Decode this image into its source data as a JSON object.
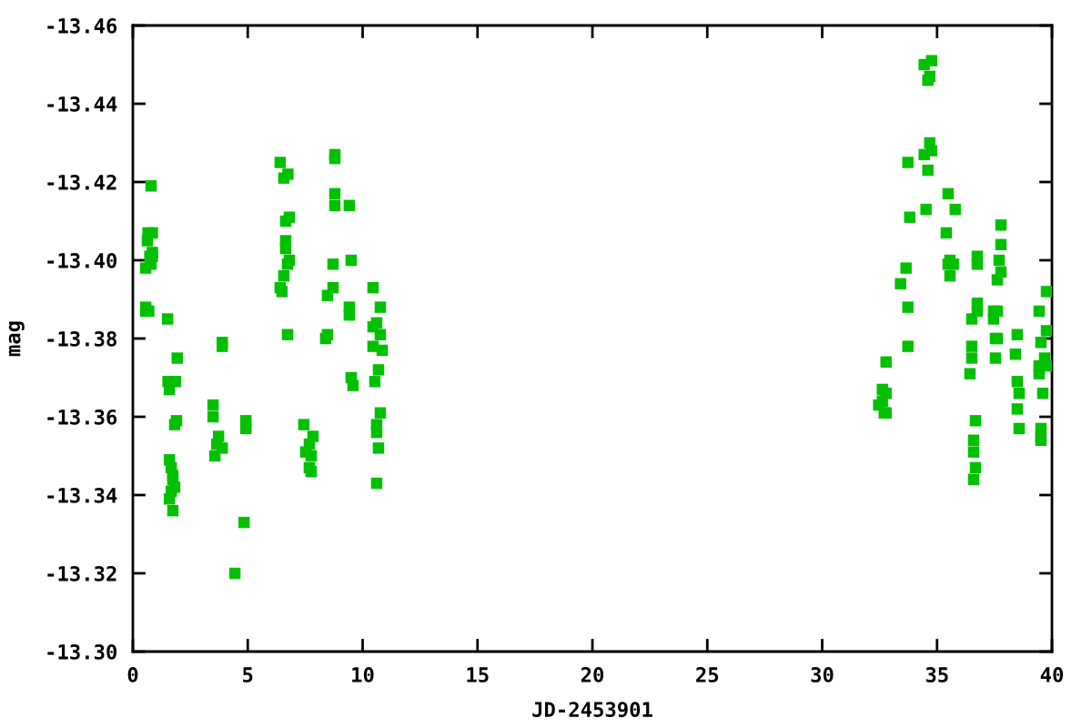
{
  "chart_data": {
    "type": "scatter",
    "xlabel": "JD-2453901",
    "ylabel": "mag",
    "xlim": [
      0,
      40
    ],
    "ylim": [
      -13.3,
      -13.46
    ],
    "xticks": [
      0,
      5,
      10,
      15,
      20,
      25,
      30,
      35,
      40
    ],
    "yticks": [
      {
        "value": -13.3,
        "label": "-13.30"
      },
      -13.32,
      -13.34,
      -13.36,
      -13.38,
      {
        "value": -13.4,
        "label": "-13.40"
      },
      -13.42,
      -13.44,
      -13.46
    ],
    "grid": false,
    "marker": "square",
    "series": [
      {
        "color": "#00c000",
        "x": [
          0.79,
          0.66,
          0.85,
          0.63,
          0.85,
          0.74,
          0.85,
          0.79,
          0.56,
          0.56,
          0.69,
          0.56,
          1.51,
          1.93,
          1.53,
          1.85,
          1.59,
          1.9,
          1.82,
          1.59,
          1.67,
          1.74,
          1.74,
          1.82,
          1.67,
          1.59,
          1.74,
          3.89,
          3.89,
          3.49,
          3.49,
          3.73,
          3.65,
          3.89,
          3.57,
          4.92,
          4.92,
          4.84,
          4.44,
          6.41,
          6.75,
          6.57,
          6.65,
          6.81,
          6.65,
          6.65,
          6.81,
          6.73,
          6.57,
          6.41,
          6.49,
          6.73,
          7.44,
          7.84,
          7.68,
          7.52,
          7.76,
          7.68,
          7.76,
          8.79,
          8.79,
          8.79,
          8.79,
          9.42,
          8.71,
          9.5,
          8.71,
          8.47,
          10.45,
          9.42,
          9.42,
          10.77,
          10.61,
          10.45,
          10.77,
          10.45,
          10.85,
          8.47,
          8.39,
          10.69,
          10.53,
          9.5,
          9.58,
          10.77,
          10.61,
          10.61,
          10.69,
          10.61,
          34.44,
          34.76,
          34.68,
          34.6,
          34.68,
          34.76,
          34.44,
          33.73,
          34.6,
          35.48,
          35.79,
          34.52,
          33.81,
          35.4,
          37.78,
          37.78,
          36.75,
          35.56,
          36.75,
          35.48,
          35.71,
          37.7,
          37.78,
          35.56,
          33.65,
          33.41,
          37.62,
          39.76,
          36.75,
          36.75,
          36.51,
          37.46,
          37.62,
          37.46,
          39.44,
          33.73,
          39.76,
          38.49,
          39.52,
          37.54,
          37.62,
          38.41,
          36.51,
          33.73,
          36.51,
          37.54,
          39.68,
          39.76,
          39.44,
          39.44,
          36.43,
          32.78,
          38.49,
          32.62,
          32.78,
          32.46,
          32.62,
          32.78,
          32.7,
          39.6,
          38.57,
          38.49,
          38.57,
          39.52,
          39.52,
          39.52,
          36.67,
          36.59,
          36.59,
          36.67,
          36.59
        ],
        "values": [
          -13.419,
          -13.407,
          -13.407,
          -13.405,
          -13.402,
          -13.401,
          -13.401,
          -13.399,
          -13.398,
          -13.388,
          -13.387,
          -13.387,
          -13.385,
          -13.375,
          -13.369,
          -13.369,
          -13.367,
          -13.359,
          -13.358,
          -13.349,
          -13.347,
          -13.345,
          -13.344,
          -13.342,
          -13.341,
          -13.339,
          -13.336,
          -13.379,
          -13.378,
          -13.363,
          -13.36,
          -13.355,
          -13.353,
          -13.352,
          -13.35,
          -13.359,
          -13.357,
          -13.333,
          -13.32,
          -13.425,
          -13.422,
          -13.421,
          -13.41,
          -13.411,
          -13.405,
          -13.403,
          -13.4,
          -13.399,
          -13.396,
          -13.393,
          -13.392,
          -13.381,
          -13.358,
          -13.355,
          -13.353,
          -13.351,
          -13.35,
          -13.347,
          -13.346,
          -13.427,
          -13.426,
          -13.417,
          -13.414,
          -13.414,
          -13.399,
          -13.4,
          -13.393,
          -13.391,
          -13.393,
          -13.388,
          -13.386,
          -13.388,
          -13.384,
          -13.383,
          -13.381,
          -13.378,
          -13.377,
          -13.381,
          -13.38,
          -13.372,
          -13.369,
          -13.37,
          -13.368,
          -13.361,
          -13.358,
          -13.356,
          -13.352,
          -13.343,
          -13.45,
          -13.451,
          -13.447,
          -13.446,
          -13.43,
          -13.428,
          -13.427,
          -13.425,
          -13.423,
          -13.417,
          -13.413,
          -13.413,
          -13.411,
          -13.407,
          -13.409,
          -13.404,
          -13.401,
          -13.4,
          -13.399,
          -13.399,
          -13.399,
          -13.4,
          -13.397,
          -13.396,
          -13.398,
          -13.394,
          -13.395,
          -13.392,
          -13.389,
          -13.387,
          -13.385,
          -13.387,
          -13.387,
          -13.385,
          -13.387,
          -13.388,
          -13.382,
          -13.381,
          -13.379,
          -13.38,
          -13.38,
          -13.376,
          -13.378,
          -13.378,
          -13.375,
          -13.375,
          -13.375,
          -13.373,
          -13.373,
          -13.371,
          -13.371,
          -13.374,
          -13.369,
          -13.367,
          -13.366,
          -13.363,
          -13.364,
          -13.361,
          -13.361,
          -13.366,
          -13.366,
          -13.362,
          -13.357,
          -13.357,
          -13.355,
          -13.354,
          -13.359,
          -13.354,
          -13.351,
          -13.347,
          -13.344
        ]
      }
    ]
  }
}
